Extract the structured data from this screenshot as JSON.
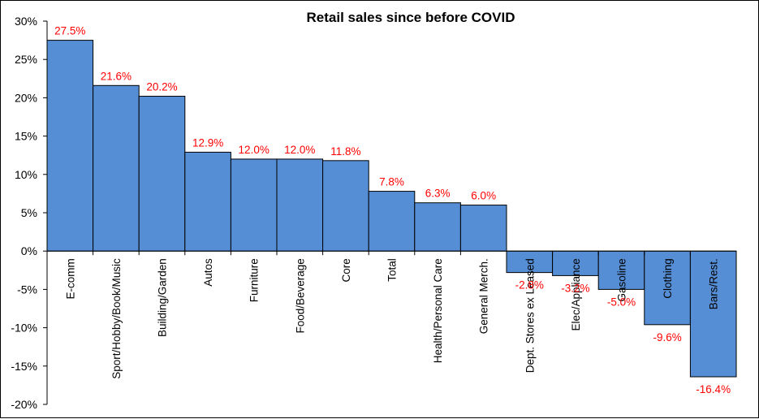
{
  "chart_data": {
    "type": "bar",
    "title": "Retail sales since before COVID",
    "xlabel": "",
    "ylabel": "",
    "ylim": [
      -20,
      30
    ],
    "yticks": [
      30,
      25,
      20,
      15,
      10,
      5,
      0,
      -5,
      -10,
      -15,
      -20
    ],
    "ytick_labels": [
      "30%",
      "25%",
      "20%",
      "15%",
      "10%",
      "5%",
      "0%",
      "-5%",
      "-10%",
      "-15%",
      "-20%"
    ],
    "grid": false,
    "legend": "none",
    "bar_color": "#558ed5",
    "label_color": "#ff0000",
    "categories": [
      "E-comm",
      "Sport/Hobby/Book/Music",
      "Building/Garden",
      "Autos",
      "Furniture",
      "Food/Beverage",
      "Core",
      "Total",
      "Health/Personal Care",
      "General Merch.",
      "Dept. Stores ex Leased",
      "Elec/Appliance",
      "Gasoline",
      "Clothing",
      "Bars/Rest."
    ],
    "values": [
      27.5,
      21.6,
      20.2,
      12.9,
      12.0,
      12.0,
      11.8,
      7.8,
      6.3,
      6.0,
      -2.8,
      -3.2,
      -5.0,
      -9.6,
      -16.4
    ],
    "data_labels": [
      "27.5%",
      "21.6%",
      "20.2%",
      "12.9%",
      "12.0%",
      "12.0%",
      "11.8%",
      "7.8%",
      "6.3%",
      "6.0%",
      "-2.8%",
      "-3.2%",
      "-5.0%",
      "-9.6%",
      "-16.4%"
    ]
  }
}
